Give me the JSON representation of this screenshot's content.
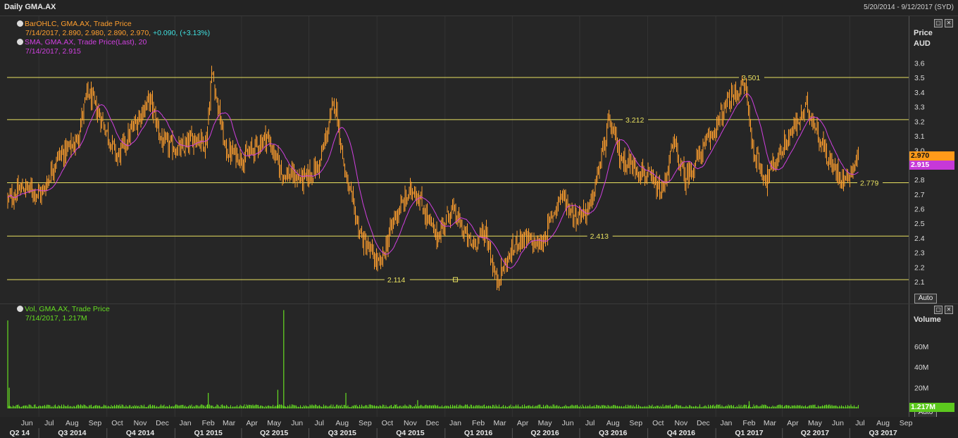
{
  "window": {
    "title": "Daily GMA.AX",
    "date_range": "5/20/2014 - 9/12/2017 (SYD)"
  },
  "price_panel": {
    "legend": {
      "ohlc_title": "BarOHLC, GMA.AX, Trade Price",
      "ohlc_values": "7/14/2017, 2.890, 2.980, 2.890, 2.970,",
      "ohlc_change": "+0.090, (+3.13%)",
      "sma_title": "SMA, GMA.AX, Trade Price(Last),  20",
      "sma_values": "7/14/2017, 2.915"
    },
    "axis_title": "Price",
    "axis_unit": "AUD",
    "auto_label": "Auto",
    "last_price_tag": "2.970",
    "last_sma_tag": "2.915",
    "colors": {
      "bars": "#ff9f2e",
      "sma": "#d040e0",
      "hlines": "#e8e060",
      "price_tag": "#ff9a1a",
      "sma_tag": "#c638d8"
    }
  },
  "volume_panel": {
    "legend": {
      "title": "Vol, GMA.AX, Trade Price",
      "values": "7/14/2017, 1.217M"
    },
    "axis_title": "Volume",
    "auto_label": "Auto",
    "last_volume_tag": "1.217M",
    "colors": {
      "bars": "#66dd22",
      "tag": "#5cc81e"
    }
  },
  "chart_data": [
    {
      "type": "ohlc",
      "title": "BarOHLC, GMA.AX, Trade Price",
      "ylabel": "Price AUD",
      "ylim": [
        2.0,
        3.7
      ],
      "yticks": [
        "2.1",
        "2.2",
        "2.3",
        "2.4",
        "2.5",
        "2.6",
        "2.7",
        "2.8",
        "2.9",
        "3.0",
        "3.1",
        "3.2",
        "3.3",
        "3.4",
        "3.5",
        "3.6"
      ],
      "horizontal_lines": [
        {
          "value": 3.501,
          "label": "3.501"
        },
        {
          "value": 3.212,
          "label": "3.212"
        },
        {
          "value": 2.779,
          "label": "2.779"
        },
        {
          "value": 2.413,
          "label": "2.413"
        },
        {
          "value": 2.114,
          "label": "2.114"
        }
      ],
      "close_path": [
        {
          "date": "2014-05-20",
          "close": 2.66
        },
        {
          "date": "2014-06-10",
          "close": 2.75
        },
        {
          "date": "2014-07-05",
          "close": 2.7
        },
        {
          "date": "2014-07-25",
          "close": 2.95
        },
        {
          "date": "2014-08-20",
          "close": 3.05
        },
        {
          "date": "2014-09-05",
          "close": 3.4
        },
        {
          "date": "2014-09-25",
          "close": 3.2
        },
        {
          "date": "2014-10-15",
          "close": 2.95
        },
        {
          "date": "2014-11-15",
          "close": 3.25
        },
        {
          "date": "2014-11-28",
          "close": 3.35
        },
        {
          "date": "2014-12-15",
          "close": 3.05
        },
        {
          "date": "2015-01-10",
          "close": 3.0
        },
        {
          "date": "2015-01-28",
          "close": 3.1
        },
        {
          "date": "2015-02-12",
          "close": 3.05
        },
        {
          "date": "2015-02-20",
          "close": 3.55
        },
        {
          "date": "2015-03-10",
          "close": 3.0
        },
        {
          "date": "2015-04-05",
          "close": 2.95
        },
        {
          "date": "2015-05-05",
          "close": 3.1
        },
        {
          "date": "2015-05-25",
          "close": 2.85
        },
        {
          "date": "2015-06-25",
          "close": 2.8
        },
        {
          "date": "2015-07-15",
          "close": 2.9
        },
        {
          "date": "2015-08-05",
          "close": 3.35
        },
        {
          "date": "2015-08-20",
          "close": 2.8
        },
        {
          "date": "2015-09-10",
          "close": 2.4
        },
        {
          "date": "2015-10-05",
          "close": 2.2
        },
        {
          "date": "2015-10-25",
          "close": 2.55
        },
        {
          "date": "2015-11-20",
          "close": 2.75
        },
        {
          "date": "2015-12-20",
          "close": 2.4
        },
        {
          "date": "2016-01-10",
          "close": 2.6
        },
        {
          "date": "2016-02-05",
          "close": 2.35
        },
        {
          "date": "2016-02-25",
          "close": 2.45
        },
        {
          "date": "2016-03-10",
          "close": 2.1
        },
        {
          "date": "2016-04-10",
          "close": 2.4
        },
        {
          "date": "2016-05-10",
          "close": 2.35
        },
        {
          "date": "2016-06-05",
          "close": 2.7
        },
        {
          "date": "2016-06-25",
          "close": 2.55
        },
        {
          "date": "2016-07-15",
          "close": 2.6
        },
        {
          "date": "2016-08-10",
          "close": 3.2
        },
        {
          "date": "2016-08-25",
          "close": 2.95
        },
        {
          "date": "2016-09-25",
          "close": 2.85
        },
        {
          "date": "2016-10-20",
          "close": 2.7
        },
        {
          "date": "2016-11-05",
          "close": 3.05
        },
        {
          "date": "2016-11-20",
          "close": 2.8
        },
        {
          "date": "2016-12-20",
          "close": 3.05
        },
        {
          "date": "2017-01-20",
          "close": 3.35
        },
        {
          "date": "2017-02-10",
          "close": 3.45
        },
        {
          "date": "2017-02-20",
          "close": 3.0
        },
        {
          "date": "2017-03-10",
          "close": 2.8
        },
        {
          "date": "2017-04-10",
          "close": 3.1
        },
        {
          "date": "2017-05-05",
          "close": 3.3
        },
        {
          "date": "2017-06-05",
          "close": 2.9
        },
        {
          "date": "2017-06-25",
          "close": 2.8
        },
        {
          "date": "2017-07-14",
          "close": 2.97
        }
      ],
      "last_bar": {
        "date": "7/14/2017",
        "open": 2.89,
        "high": 2.98,
        "low": 2.89,
        "close": 2.97
      }
    },
    {
      "type": "bar",
      "title": "Vol, GMA.AX, Trade Price",
      "ylabel": "Volume",
      "ylim": [
        0,
        95
      ],
      "yticks": [
        "20M",
        "40M",
        "60M"
      ],
      "spikes_millions": [
        {
          "date": "2014-05-20",
          "volume": 85
        },
        {
          "date": "2014-05-22",
          "volume": 20
        },
        {
          "date": "2015-02-15",
          "volume": 15
        },
        {
          "date": "2015-05-20",
          "volume": 18
        },
        {
          "date": "2015-05-28",
          "volume": 95
        },
        {
          "date": "2015-08-20",
          "volume": 15
        },
        {
          "date": "2015-11-25",
          "volume": 8
        },
        {
          "date": "2017-02-15",
          "volume": 7
        }
      ],
      "typical_volume_millions": 3,
      "last": {
        "date": "7/14/2017",
        "volume": "1.217M"
      }
    }
  ],
  "x_axis": {
    "months": [
      "Jun",
      "Jul",
      "Aug",
      "Sep",
      "Oct",
      "Nov",
      "Dec",
      "Jan",
      "Feb",
      "Mar",
      "Apr",
      "May",
      "Jun",
      "Jul",
      "Aug",
      "Sep",
      "Oct",
      "Nov",
      "Dec",
      "Jan",
      "Feb",
      "Mar",
      "Apr",
      "May",
      "Jun",
      "Jul",
      "Aug",
      "Sep",
      "Oct",
      "Nov",
      "Dec",
      "Jan",
      "Feb",
      "Mar",
      "Apr",
      "May",
      "Jun",
      "Jul",
      "Aug",
      "Sep"
    ],
    "quarters": [
      "Q2 14",
      "Q3 2014",
      "Q4 2014",
      "Q1 2015",
      "Q2 2015",
      "Q3 2015",
      "Q4 2015",
      "Q1 2016",
      "Q2 2016",
      "Q3 2016",
      "Q4 2016",
      "Q1 2017",
      "Q2 2017",
      "Q3 2017"
    ]
  }
}
